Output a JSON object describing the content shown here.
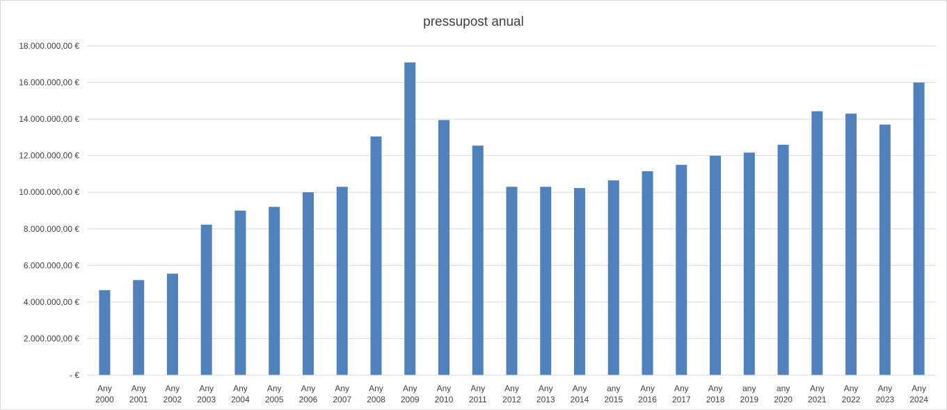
{
  "chart_data": {
    "type": "bar",
    "title": "pressupost anual",
    "xlabel": "",
    "ylabel": "",
    "categories": [
      [
        "Any",
        "2000"
      ],
      [
        "Any",
        "2001"
      ],
      [
        "Any",
        "2002"
      ],
      [
        "Any",
        "2003"
      ],
      [
        "Any",
        "2004"
      ],
      [
        "Any",
        "2005"
      ],
      [
        "Any",
        "2006"
      ],
      [
        "Any",
        "2007"
      ],
      [
        "Any",
        "2008"
      ],
      [
        "Any",
        "2009"
      ],
      [
        "Any",
        "2010"
      ],
      [
        "Any",
        "2011"
      ],
      [
        "Any",
        "2012"
      ],
      [
        "Any",
        "2013"
      ],
      [
        "Any",
        "2014"
      ],
      [
        "any",
        "2015"
      ],
      [
        "Any",
        "2016"
      ],
      [
        "Any",
        "2017"
      ],
      [
        "Any",
        "2018"
      ],
      [
        "any",
        "2019"
      ],
      [
        "any",
        "2020"
      ],
      [
        "Any",
        "2021"
      ],
      [
        "Any",
        "2022"
      ],
      [
        "Any",
        "2023"
      ],
      [
        "Any",
        "2024"
      ]
    ],
    "values": [
      4650000,
      5200000,
      5550000,
      8230000,
      9000000,
      9200000,
      10000000,
      10300000,
      13050000,
      17100000,
      13950000,
      12550000,
      10300000,
      10300000,
      10230000,
      10650000,
      11150000,
      11500000,
      12000000,
      12170000,
      12600000,
      14430000,
      14300000,
      13700000,
      16000000
    ],
    "ylim": [
      0,
      18000000
    ],
    "yticks": [
      0,
      2000000,
      4000000,
      6000000,
      8000000,
      10000000,
      12000000,
      14000000,
      16000000,
      18000000
    ],
    "ytick_labels": [
      "-   €",
      "2.000.000,00 €",
      "4.000.000,00 €",
      "6.000.000,00 €",
      "8.000.000,00 €",
      "10.000.000,00 €",
      "12.000.000,00 €",
      "14.000.000,00 €",
      "16.000.000,00 €",
      "18.000.000,00 €"
    ],
    "grid": true,
    "legend": "none",
    "colors": {
      "bar": "#4f81bd",
      "grid": "#d9d9d9",
      "text": "#404040"
    }
  }
}
